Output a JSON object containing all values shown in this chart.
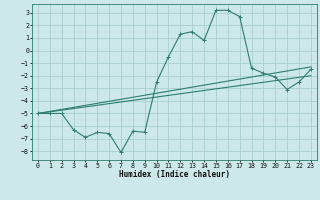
{
  "xlabel": "Humidex (Indice chaleur)",
  "bg_color": "#cce8e8",
  "grid_color": "#aacece",
  "line_color": "#2d7d6e",
  "spine_color": "#2d7d6e",
  "xlim": [
    -0.5,
    23.5
  ],
  "ylim": [
    -8.7,
    3.7
  ],
  "yticks": [
    3,
    2,
    1,
    0,
    -1,
    -2,
    -3,
    -4,
    -5,
    -6,
    -7,
    -8
  ],
  "xticks": [
    0,
    1,
    2,
    3,
    4,
    5,
    6,
    7,
    8,
    9,
    10,
    11,
    12,
    13,
    14,
    15,
    16,
    17,
    18,
    19,
    20,
    21,
    22,
    23
  ],
  "curve1_x": [
    0,
    1,
    2,
    3,
    4,
    5,
    6,
    7,
    8,
    9,
    10,
    11,
    12,
    13,
    14,
    15,
    16,
    17,
    18,
    19,
    20,
    21,
    22,
    23
  ],
  "curve1_y": [
    -5.0,
    -5.0,
    -5.0,
    -6.3,
    -6.9,
    -6.5,
    -6.6,
    -8.1,
    -6.4,
    -6.5,
    -2.5,
    -0.5,
    1.3,
    1.5,
    0.8,
    3.2,
    3.2,
    2.7,
    -1.4,
    -1.8,
    -2.1,
    -3.1,
    -2.5,
    -1.5
  ],
  "curve2_x": [
    0,
    23
  ],
  "curve2_y": [
    -5.0,
    -2.0
  ],
  "curve3_x": [
    0,
    23
  ],
  "curve3_y": [
    -5.0,
    -1.3
  ],
  "xlabel_fontsize": 5.5,
  "tick_fontsize": 4.8
}
